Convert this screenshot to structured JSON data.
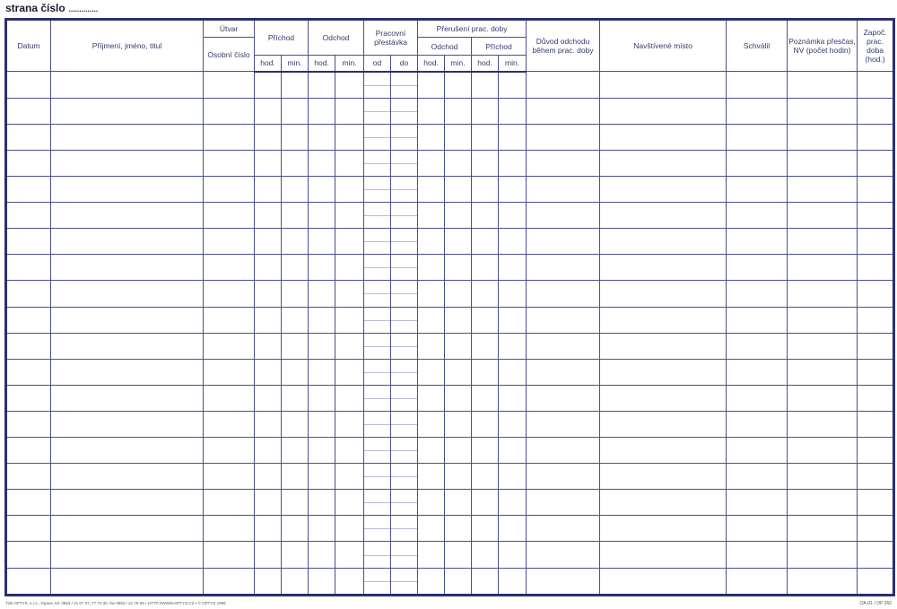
{
  "page_label": "strana číslo",
  "page_dots": "..............",
  "headers": {
    "datum": "Datum",
    "jmeno": "Příjmení, jméno, titul",
    "utvar": "Útvar",
    "osobni_cislo": "Osobní číslo",
    "prichod": "Příchod",
    "odchod": "Odchod",
    "prestavka": "Pracovní přestávka",
    "preruseni": "Přerušení prac. doby",
    "preruseni_odchod": "Odchod",
    "preruseni_prichod": "Příchod",
    "duvod": "Důvod odchodu během prac. doby",
    "misto": "Navštívené místo",
    "schvalil": "Schválil",
    "poznamka": "Poznámka přesčas, NV (počet hodin)",
    "zapoc": "Započ. prac. doba (hod.)",
    "hod": "hod.",
    "min": "min.",
    "od": "od",
    "do": "do"
  },
  "row_count": 20,
  "footer_left": "Tisk OPTYS, s.r.o., Opava, tel. 0653 / 21 07 37, 77 73 30, fax 0653 / 21 75 08 • HTTP://WWW.OPTYS.CZ • © OPTYS 1998",
  "footer_right": "OA-01 / OP 260",
  "colors": {
    "line": "#2b2f70",
    "text": "#333a6e"
  }
}
